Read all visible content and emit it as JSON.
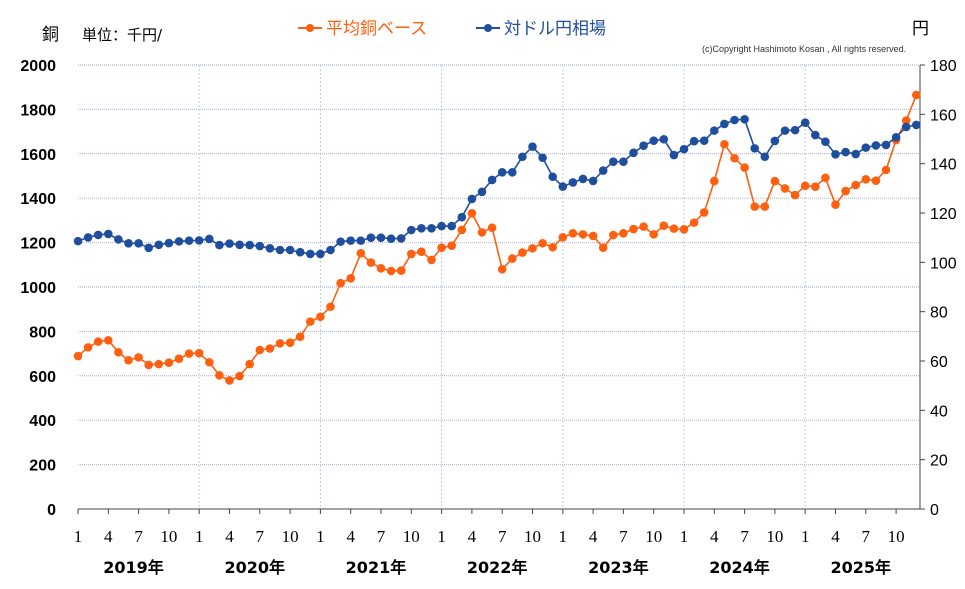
{
  "chart_data": {
    "type": "line",
    "left_axis_label": "銅",
    "unit_label": "単位：千円/",
    "right_axis_label": "円",
    "copyright": "(c)Copyright Hashimoto Kosan , All rights reserved.",
    "x_start": "2019-01",
    "x_end": "2025-12",
    "month_tick_labels": [
      "1",
      "4",
      "7",
      "10"
    ],
    "year_labels": [
      "2019年",
      "2020年",
      "2021年",
      "2022年",
      "2023年",
      "2024年",
      "2025年"
    ],
    "y_left": {
      "min": 0,
      "max": 2000,
      "ticks": [
        0,
        200,
        400,
        600,
        800,
        1000,
        1200,
        1400,
        1600,
        1800,
        2000
      ]
    },
    "y_right": {
      "min": 0,
      "max": 180,
      "ticks": [
        0,
        20,
        40,
        60,
        80,
        100,
        120,
        140,
        160,
        180
      ]
    },
    "grid": true,
    "legend_position": "top",
    "series": [
      {
        "name": "平均銅ベース",
        "axis": "left",
        "color": "#FF6010",
        "values": [
          689,
          728,
          754,
          760,
          706,
          670,
          683,
          649,
          653,
          659,
          677,
          700,
          702,
          661,
          602,
          579,
          599,
          653,
          716,
          723,
          746,
          749,
          776,
          844,
          866,
          911,
          1017,
          1039,
          1152,
          1110,
          1084,
          1072,
          1074,
          1149,
          1159,
          1122,
          1177,
          1186,
          1257,
          1332,
          1246,
          1267,
          1080,
          1128,
          1155,
          1174,
          1197,
          1179,
          1224,
          1242,
          1237,
          1230,
          1177,
          1234,
          1242,
          1261,
          1272,
          1237,
          1276,
          1263,
          1260,
          1290,
          1336,
          1477,
          1643,
          1580,
          1538,
          1362,
          1362,
          1477,
          1444,
          1414,
          1456,
          1452,
          1492,
          1371,
          1432,
          1459,
          1485,
          1479,
          1527,
          1662,
          1750,
          1865
        ]
      },
      {
        "name": "対ドル円相場",
        "axis": "right",
        "color": "#1F4E9E",
        "values": [
          108.6,
          110.1,
          111.1,
          111.5,
          109.3,
          107.7,
          107.7,
          105.9,
          107.1,
          107.8,
          108.5,
          108.8,
          108.9,
          109.5,
          107.0,
          107.6,
          107.1,
          107.0,
          106.6,
          105.7,
          105.0,
          105.0,
          104.1,
          103.4,
          103.4,
          105.0,
          108.4,
          108.8,
          108.8,
          110.0,
          110.0,
          109.6,
          109.7,
          113.1,
          113.8,
          113.8,
          114.7,
          114.7,
          118.3,
          125.7,
          128.6,
          133.4,
          136.5,
          136.5,
          142.8,
          146.9,
          142.4,
          134.7,
          130.7,
          132.4,
          133.8,
          133.0,
          137.2,
          140.8,
          140.8,
          144.4,
          147.3,
          149.3,
          149.9,
          143.5,
          145.9,
          149.1,
          149.3,
          153.4,
          156.1,
          157.7,
          158.0,
          146.2,
          142.8,
          149.2,
          153.4,
          153.6,
          156.6,
          151.6,
          148.9,
          143.8,
          144.7,
          143.9,
          146.5,
          147.4,
          147.6,
          150.7,
          154.9,
          155.7
        ]
      }
    ]
  }
}
